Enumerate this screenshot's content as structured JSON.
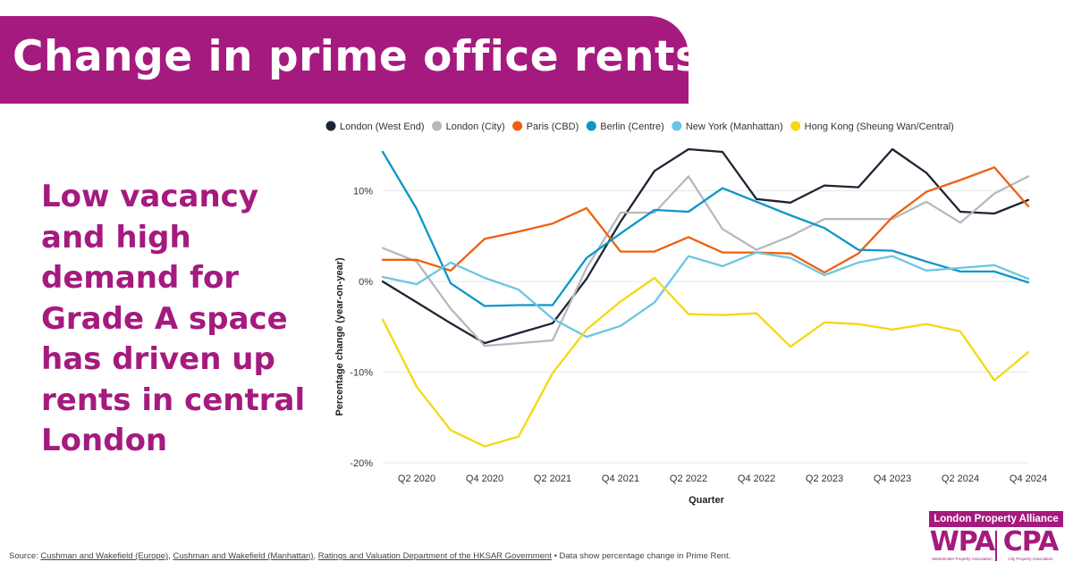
{
  "title": "Change in prime office rents",
  "subtitle": "Low vacancy and high demand for Grade A space has driven up rents in central London",
  "colors": {
    "brand": "#a51a7e"
  },
  "chart_data": {
    "type": "line",
    "xlabel": "Quarter",
    "ylabel": "Percentage change (year-on-year)",
    "ylim": [
      -20,
      14.5
    ],
    "yticks": [
      {
        "value": 10,
        "label": "10%"
      },
      {
        "value": 0,
        "label": "0%"
      },
      {
        "value": -10,
        "label": "-10%"
      },
      {
        "value": -20,
        "label": "-20%"
      }
    ],
    "x": [
      "Q1 2020",
      "Q2 2020",
      "Q3 2020",
      "Q4 2020",
      "Q1 2021",
      "Q2 2021",
      "Q3 2021",
      "Q4 2021",
      "Q1 2022",
      "Q2 2022",
      "Q3 2022",
      "Q4 2022",
      "Q1 2023",
      "Q2 2023",
      "Q3 2023",
      "Q4 2023",
      "Q1 2024",
      "Q2 2024",
      "Q3 2024",
      "Q4 2024"
    ],
    "x_tick_labels": [
      "Q2 2020",
      "Q4 2020",
      "Q2 2021",
      "Q4 2021",
      "Q2 2022",
      "Q4 2022",
      "Q2 2023",
      "Q4 2023",
      "Q2 2024",
      "Q4 2024"
    ],
    "series": [
      {
        "name": "London (West End)",
        "color": "#1c2533",
        "values": [
          0,
          -2.3,
          -4.6,
          -6.8,
          -5.7,
          -4.6,
          0.3,
          6.6,
          12.2,
          14.6,
          14.3,
          9.1,
          8.7,
          10.6,
          10.4,
          14.6,
          12,
          7.7,
          7.5,
          9
        ]
      },
      {
        "name": "London (City)",
        "color": "#b5b9be",
        "values": [
          3.7,
          2.2,
          -3,
          -7.1,
          -6.8,
          -6.5,
          1.5,
          7.6,
          7.6,
          11.6,
          5.8,
          3.5,
          5,
          6.9,
          6.9,
          6.9,
          8.8,
          6.5,
          9.7,
          11.6
        ]
      },
      {
        "name": "Paris (CBD)",
        "color": "#ee6010",
        "values": [
          2.4,
          2.4,
          1.2,
          4.7,
          5.5,
          6.4,
          8.1,
          3.3,
          3.3,
          4.9,
          3.2,
          3.2,
          3.1,
          1,
          3.1,
          7.1,
          9.9,
          11.2,
          12.6,
          8.3
        ]
      },
      {
        "name": "Berlin (Centre)",
        "color": "#0d96c8",
        "values": [
          14.3,
          8,
          -0.2,
          -2.7,
          -2.6,
          -2.6,
          2.6,
          5.3,
          7.9,
          7.7,
          10.3,
          8.8,
          7.3,
          5.9,
          3.5,
          3.4,
          2.2,
          1.1,
          1.1,
          -0.1
        ]
      },
      {
        "name": "New York (Manhattan)",
        "color": "#6cc5e2",
        "values": [
          0.5,
          -0.3,
          2.1,
          0.4,
          -0.9,
          -4.1,
          -6.1,
          -4.9,
          -2.3,
          2.8,
          1.7,
          3.2,
          2.6,
          0.7,
          2.1,
          2.8,
          1.2,
          1.5,
          1.8,
          0.3
        ]
      },
      {
        "name": "Hong Kong (Sheung Wan/Central)",
        "color": "#f5d80e",
        "values": [
          -4.2,
          -11.6,
          -16.4,
          -18.2,
          -17.1,
          -10.1,
          -5.3,
          -2.2,
          0.4,
          -3.6,
          -3.7,
          -3.5,
          -7.2,
          -4.5,
          -4.7,
          -5.3,
          -4.7,
          -5.5,
          -10.9,
          -7.8
        ]
      }
    ]
  },
  "logo": {
    "top": "London Property Alliance",
    "left": "WPA",
    "right": "CPA",
    "left_sub": "Westminster Property Association",
    "right_sub": "City Property Association"
  },
  "footer": {
    "prefix": "Source: ",
    "link1": "Cushman and Wakefield (Europe)",
    "sep1": ", ",
    "link2": "Cushman and Wakefield (Manhattan)",
    "sep2": ", ",
    "link3": "Ratings and Valuation Department of the HKSAR Government",
    "suffix": " • Data show percentage change in Prime Rent."
  }
}
